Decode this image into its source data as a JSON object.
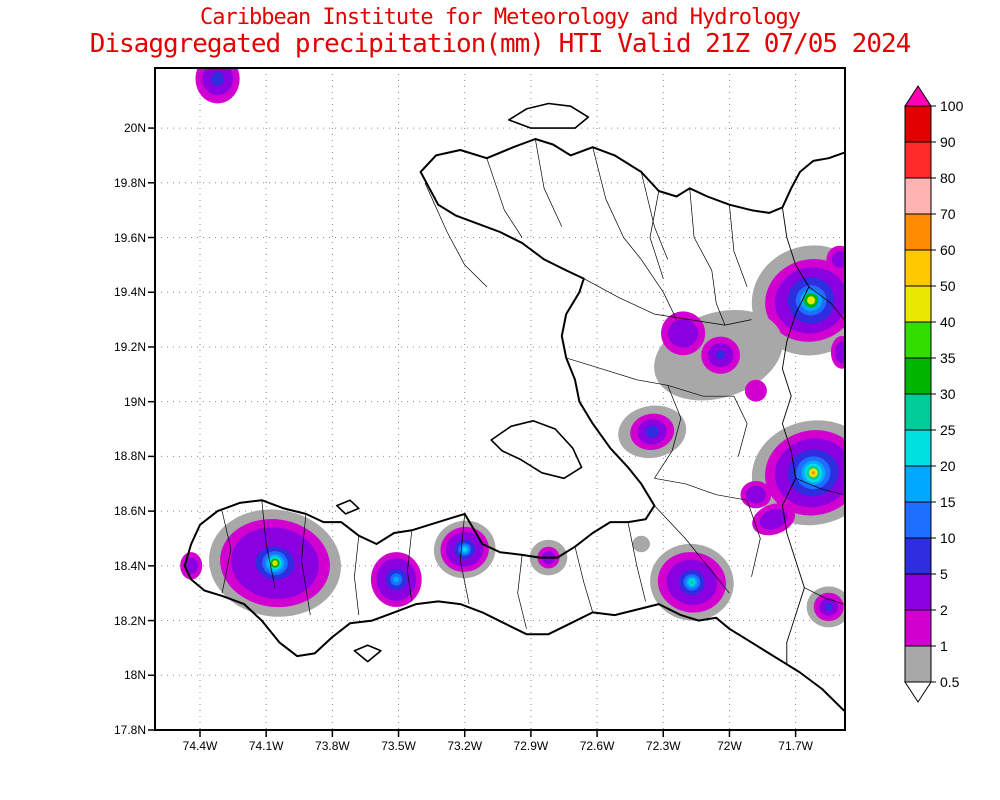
{
  "header": {
    "line1": "Caribbean Institute for Meteorology and Hydrology",
    "line2": "Disaggregated precipitation(mm) HTI Valid 21Z 07/05 2024",
    "title_color": "#e30000"
  },
  "axes": {
    "lat_tick_labels": [
      "17.8N",
      "18N",
      "18.2N",
      "18.4N",
      "18.6N",
      "18.8N",
      "19N",
      "19.2N",
      "19.4N",
      "19.6N",
      "19.8N",
      "20N"
    ],
    "lat_tick_values": [
      17.8,
      18,
      18.2,
      18.4,
      18.6,
      18.8,
      19,
      19.2,
      19.4,
      19.6,
      19.8,
      20
    ],
    "lon_tick_labels": [
      "74.4W",
      "74.1W",
      "73.8W",
      "73.5W",
      "73.2W",
      "72.9W",
      "72.6W",
      "72.3W",
      "72W",
      "71.7W"
    ],
    "lon_tick_values": [
      74.4,
      74.1,
      73.8,
      73.5,
      73.2,
      72.9,
      72.6,
      72.3,
      72,
      71.7
    ]
  },
  "colorbar": {
    "labels": [
      "0.5",
      "1",
      "2",
      "5",
      "10",
      "15",
      "20",
      "25",
      "30",
      "35",
      "40",
      "50",
      "60",
      "70",
      "80",
      "90",
      "100"
    ],
    "levels": [
      0.5,
      1,
      2,
      5,
      10,
      15,
      20,
      25,
      30,
      35,
      40,
      50,
      60,
      70,
      80,
      90,
      100
    ],
    "colors": [
      "#a8a8a8",
      "#d100d1",
      "#8a00e0",
      "#2e2ee0",
      "#1e6eff",
      "#00a8ff",
      "#00e0e0",
      "#00cc99",
      "#00b400",
      "#33dd00",
      "#e8e800",
      "#ffc800",
      "#ff8c00",
      "#ffb4b4",
      "#ff2a2a",
      "#e00000"
    ],
    "above_color": "#ff00b4",
    "below_color": "#ffffff"
  },
  "chart_data": {
    "type": "contour-map",
    "variable": "Disaggregated precipitation (mm)",
    "region": "HTI",
    "valid": "21Z 07/05 2024",
    "extent": {
      "lon_west": 74.6,
      "lon_east": 71.48,
      "lat_south": 17.8,
      "lat_north": 20.22
    },
    "features": [
      {
        "name": "nw-offshore-cell",
        "lon": 74.32,
        "lat": 20.18,
        "rot": 0,
        "rings": [
          {
            "level": 1,
            "rx": 0.1,
            "ry": 0.09
          },
          {
            "level": 2,
            "rx": 0.07,
            "ry": 0.06
          },
          {
            "level": 5,
            "rx": 0.03,
            "ry": 0.025
          }
        ]
      },
      {
        "name": "northeast-cell",
        "lon": 71.63,
        "lat": 19.37,
        "rot": -15,
        "rings": [
          {
            "level": 0.5,
            "rx": 0.27,
            "ry": 0.2
          },
          {
            "level": 1,
            "rx": 0.21,
            "ry": 0.15
          },
          {
            "level": 2,
            "rx": 0.165,
            "ry": 0.12
          },
          {
            "level": 5,
            "rx": 0.105,
            "ry": 0.085
          },
          {
            "level": 10,
            "rx": 0.07,
            "ry": 0.055
          },
          {
            "level": 15,
            "rx": 0.05,
            "ry": 0.04
          },
          {
            "level": 30,
            "rx": 0.032,
            "ry": 0.026
          },
          {
            "level": 40,
            "rx": 0.018,
            "ry": 0.015
          }
        ]
      },
      {
        "name": "northeast-edge-cell",
        "lon": 71.5,
        "lat": 19.52,
        "rot": 0,
        "rings": [
          {
            "level": 1,
            "rx": 0.06,
            "ry": 0.05
          },
          {
            "level": 2,
            "rx": 0.035,
            "ry": 0.03
          }
        ]
      },
      {
        "name": "northeast-edge-cell-2",
        "lon": 71.49,
        "lat": 19.18,
        "rot": 0,
        "rings": [
          {
            "level": 1,
            "rx": 0.05,
            "ry": 0.06
          },
          {
            "level": 2,
            "rx": 0.03,
            "ry": 0.04
          }
        ]
      },
      {
        "name": "central-north-gray",
        "lon": 72.05,
        "lat": 19.17,
        "rot": -18,
        "rings": [
          {
            "level": 0.5,
            "rx": 0.3,
            "ry": 0.155
          }
        ]
      },
      {
        "name": "central-north-cell-a",
        "lon": 72.21,
        "lat": 19.25,
        "rot": 0,
        "rings": [
          {
            "level": 1,
            "rx": 0.1,
            "ry": 0.08
          },
          {
            "level": 2,
            "rx": 0.068,
            "ry": 0.052
          }
        ]
      },
      {
        "name": "central-north-cell-b",
        "lon": 72.04,
        "lat": 19.17,
        "rot": 0,
        "rings": [
          {
            "level": 1,
            "rx": 0.088,
            "ry": 0.068
          },
          {
            "level": 2,
            "rx": 0.058,
            "ry": 0.044
          },
          {
            "level": 5,
            "rx": 0.02,
            "ry": 0.016
          }
        ]
      },
      {
        "name": "central-north-cell-c",
        "lon": 71.88,
        "lat": 19.04,
        "rot": 0,
        "rings": [
          {
            "level": 1,
            "rx": 0.05,
            "ry": 0.04
          }
        ]
      },
      {
        "name": "artibonite-cell",
        "lon": 72.35,
        "lat": 18.89,
        "rot": -10,
        "rings": [
          {
            "level": 0.5,
            "rx": 0.155,
            "ry": 0.095
          },
          {
            "level": 1,
            "rx": 0.1,
            "ry": 0.066
          },
          {
            "level": 2,
            "rx": 0.066,
            "ry": 0.046
          },
          {
            "level": 5,
            "rx": 0.03,
            "ry": 0.022
          }
        ]
      },
      {
        "name": "east-cell",
        "lon": 71.62,
        "lat": 18.74,
        "rot": -12,
        "rings": [
          {
            "level": 0.5,
            "rx": 0.28,
            "ry": 0.19
          },
          {
            "level": 1,
            "rx": 0.22,
            "ry": 0.155
          },
          {
            "level": 2,
            "rx": 0.175,
            "ry": 0.125
          },
          {
            "level": 5,
            "rx": 0.115,
            "ry": 0.085
          },
          {
            "level": 10,
            "rx": 0.078,
            "ry": 0.06
          },
          {
            "level": 15,
            "rx": 0.055,
            "ry": 0.045
          },
          {
            "level": 20,
            "rx": 0.04,
            "ry": 0.034
          },
          {
            "level": 25,
            "rx": 0.03,
            "ry": 0.026
          },
          {
            "level": 40,
            "rx": 0.02,
            "ry": 0.016
          },
          {
            "level": 50,
            "rx": 0.011,
            "ry": 0.009
          },
          {
            "level": 60,
            "rx": 0.006,
            "ry": 0.005
          }
        ]
      },
      {
        "name": "east-cell-west-lobe",
        "lon": 71.88,
        "lat": 18.66,
        "rot": 0,
        "rings": [
          {
            "level": 1,
            "rx": 0.07,
            "ry": 0.05
          },
          {
            "level": 2,
            "rx": 0.045,
            "ry": 0.032
          }
        ]
      },
      {
        "name": "east-cell-south-band",
        "lon": 71.8,
        "lat": 18.57,
        "rot": -20,
        "rings": [
          {
            "level": 1,
            "rx": 0.1,
            "ry": 0.055
          },
          {
            "level": 2,
            "rx": 0.065,
            "ry": 0.035
          }
        ]
      },
      {
        "name": "grand-anse-cell",
        "lon": 74.06,
        "lat": 18.41,
        "rot": 8,
        "rings": [
          {
            "level": 0.5,
            "rx": 0.3,
            "ry": 0.195
          },
          {
            "level": 1,
            "rx": 0.25,
            "ry": 0.16
          },
          {
            "level": 2,
            "rx": 0.2,
            "ry": 0.13
          },
          {
            "level": 5,
            "rx": 0.088,
            "ry": 0.06
          },
          {
            "level": 10,
            "rx": 0.058,
            "ry": 0.044
          },
          {
            "level": 15,
            "rx": 0.042,
            "ry": 0.033
          },
          {
            "level": 20,
            "rx": 0.03,
            "ry": 0.024
          },
          {
            "level": 30,
            "rx": 0.021,
            "ry": 0.017
          },
          {
            "level": 40,
            "rx": 0.012,
            "ry": 0.01
          },
          {
            "level": 50,
            "rx": 0.006,
            "ry": 0.005
          }
        ]
      },
      {
        "name": "west-edge-cell",
        "lon": 74.44,
        "lat": 18.4,
        "rot": 0,
        "rings": [
          {
            "level": 1,
            "rx": 0.05,
            "ry": 0.05
          },
          {
            "level": 2,
            "rx": 0.03,
            "ry": 0.03
          }
        ]
      },
      {
        "name": "sud-cell",
        "lon": 73.51,
        "lat": 18.35,
        "rot": 0,
        "rings": [
          {
            "level": 1,
            "rx": 0.115,
            "ry": 0.1
          },
          {
            "level": 2,
            "rx": 0.09,
            "ry": 0.078
          },
          {
            "level": 5,
            "rx": 0.048,
            "ry": 0.04
          },
          {
            "level": 10,
            "rx": 0.027,
            "ry": 0.022
          },
          {
            "level": 15,
            "rx": 0.013,
            "ry": 0.011
          }
        ]
      },
      {
        "name": "nippes-cell",
        "lon": 73.2,
        "lat": 18.46,
        "rot": -12,
        "rings": [
          {
            "level": 0.5,
            "rx": 0.14,
            "ry": 0.105
          },
          {
            "level": 1,
            "rx": 0.11,
            "ry": 0.082
          },
          {
            "level": 2,
            "rx": 0.085,
            "ry": 0.063
          },
          {
            "level": 5,
            "rx": 0.047,
            "ry": 0.036
          },
          {
            "level": 10,
            "rx": 0.029,
            "ry": 0.023
          },
          {
            "level": 15,
            "rx": 0.019,
            "ry": 0.015
          },
          {
            "level": 20,
            "rx": 0.01,
            "ry": 0.008
          }
        ]
      },
      {
        "name": "ouest-coast-cell",
        "lon": 72.82,
        "lat": 18.43,
        "rot": 0,
        "rings": [
          {
            "level": 0.5,
            "rx": 0.085,
            "ry": 0.065
          },
          {
            "level": 1,
            "rx": 0.05,
            "ry": 0.04
          },
          {
            "level": 2,
            "rx": 0.03,
            "ry": 0.024
          }
        ]
      },
      {
        "name": "sud-est-cell",
        "lon": 72.17,
        "lat": 18.34,
        "rot": 10,
        "rings": [
          {
            "level": 0.5,
            "rx": 0.19,
            "ry": 0.14
          },
          {
            "level": 1,
            "rx": 0.155,
            "ry": 0.11
          },
          {
            "level": 2,
            "rx": 0.115,
            "ry": 0.082
          },
          {
            "level": 5,
            "rx": 0.058,
            "ry": 0.046
          },
          {
            "level": 10,
            "rx": 0.038,
            "ry": 0.03
          },
          {
            "level": 15,
            "rx": 0.026,
            "ry": 0.021
          },
          {
            "level": 20,
            "rx": 0.016,
            "ry": 0.013
          },
          {
            "level": 25,
            "rx": 0.009,
            "ry": 0.007
          }
        ]
      },
      {
        "name": "pedernales-cell",
        "lon": 71.55,
        "lat": 18.25,
        "rot": 0,
        "rings": [
          {
            "level": 0.5,
            "rx": 0.1,
            "ry": 0.075
          },
          {
            "level": 1,
            "rx": 0.068,
            "ry": 0.052
          },
          {
            "level": 2,
            "rx": 0.042,
            "ry": 0.032
          },
          {
            "level": 5,
            "rx": 0.018,
            "ry": 0.014
          }
        ]
      },
      {
        "name": "small-gray-cell",
        "lon": 72.4,
        "lat": 18.48,
        "rot": 0,
        "rings": [
          {
            "level": 0.5,
            "rx": 0.04,
            "ry": 0.03
          }
        ]
      }
    ]
  }
}
